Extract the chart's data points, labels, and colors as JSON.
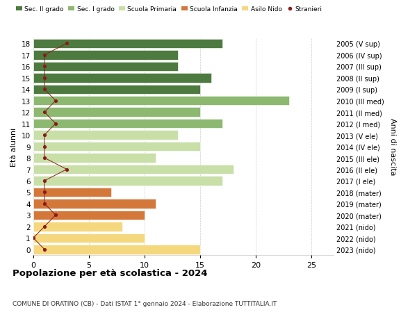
{
  "ages": [
    0,
    1,
    2,
    3,
    4,
    5,
    6,
    7,
    8,
    9,
    10,
    11,
    12,
    13,
    14,
    15,
    16,
    17,
    18
  ],
  "right_labels": [
    "2023 (nido)",
    "2022 (nido)",
    "2021 (nido)",
    "2020 (mater)",
    "2019 (mater)",
    "2018 (mater)",
    "2017 (I ele)",
    "2016 (II ele)",
    "2015 (III ele)",
    "2014 (IV ele)",
    "2013 (V ele)",
    "2012 (I med)",
    "2011 (II med)",
    "2010 (III med)",
    "2009 (I sup)",
    "2008 (II sup)",
    "2007 (III sup)",
    "2006 (IV sup)",
    "2005 (V sup)"
  ],
  "bar_values": [
    15,
    10,
    8,
    10,
    11,
    7,
    17,
    18,
    11,
    15,
    13,
    17,
    15,
    23,
    15,
    16,
    13,
    13,
    17
  ],
  "bar_colors": [
    "#f5d87e",
    "#f5d87e",
    "#f5d87e",
    "#d4783a",
    "#d4783a",
    "#d4783a",
    "#c8dfa8",
    "#c8dfa8",
    "#c8dfa8",
    "#c8dfa8",
    "#c8dfa8",
    "#8db870",
    "#8db870",
    "#8db870",
    "#4d7a3e",
    "#4d7a3e",
    "#4d7a3e",
    "#4d7a3e",
    "#4d7a3e"
  ],
  "stranieri_values": [
    1,
    0,
    1,
    2,
    1,
    1,
    1,
    3,
    1,
    1,
    1,
    2,
    1,
    2,
    1,
    1,
    1,
    1,
    3
  ],
  "legend_labels": [
    "Sec. II grado",
    "Sec. I grado",
    "Scuola Primaria",
    "Scuola Infanzia",
    "Asilo Nido",
    "Stranieri"
  ],
  "legend_colors": [
    "#4d7a3e",
    "#8db870",
    "#c8dfa8",
    "#d4783a",
    "#f5d87e",
    "#8b1a1a"
  ],
  "title": "Popolazione per età scolastica - 2024",
  "subtitle": "COMUNE DI ORATINO (CB) - Dati ISTAT 1° gennaio 2024 - Elaborazione TUTTITALIA.IT",
  "ylabel_left": "Età alunni",
  "ylabel_right": "Anni di nascita",
  "xlim": [
    0,
    27
  ],
  "ylim": [
    -0.5,
    18.5
  ],
  "bg_color": "#ffffff",
  "grid_color": "#cccccc",
  "xticks": [
    0,
    5,
    10,
    15,
    20,
    25
  ]
}
